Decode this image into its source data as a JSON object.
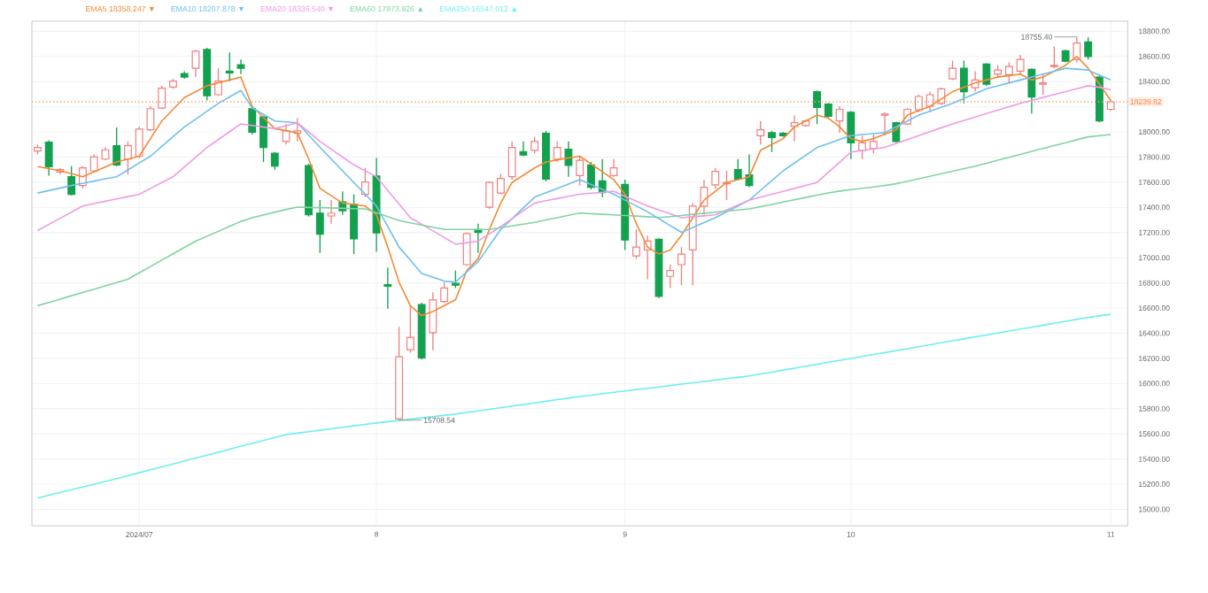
{
  "chart_data": {
    "type": "candlestick",
    "categories": [
      null,
      null,
      null,
      null,
      null,
      null,
      null,
      null,
      null,
      "2024/07",
      null,
      null,
      null,
      null,
      null,
      null,
      null,
      null,
      null,
      null,
      null,
      null,
      null,
      null,
      null,
      null,
      null,
      null,
      null,
      null,
      "8",
      null,
      null,
      null,
      null,
      null,
      null,
      null,
      null,
      null,
      null,
      null,
      null,
      null,
      null,
      null,
      null,
      null,
      null,
      null,
      null,
      null,
      "9",
      null,
      null,
      null,
      null,
      null,
      null,
      null,
      null,
      null,
      null,
      null,
      null,
      null,
      null,
      null,
      null,
      null,
      null,
      null,
      "10",
      null,
      null,
      null,
      null,
      null,
      null,
      null,
      null,
      null,
      null,
      null,
      null,
      null,
      null,
      null,
      null,
      null,
      null,
      null,
      null,
      null,
      null,
      "11"
    ],
    "ohlc": [
      [
        17849,
        17900,
        17821,
        17877
      ],
      [
        17919,
        17933,
        17653,
        17723
      ],
      [
        17681,
        17714,
        17663,
        17700
      ],
      [
        17644,
        17728,
        17495,
        17504
      ],
      [
        17574,
        17728,
        17551,
        17714
      ],
      [
        17691,
        17821,
        17681,
        17802
      ],
      [
        17784,
        17877,
        17775,
        17858
      ],
      [
        17891,
        18036,
        17728,
        17737
      ],
      [
        17784,
        17924,
        17663,
        17891
      ],
      [
        17807,
        18040,
        17793,
        18022
      ],
      [
        18017,
        18204,
        18008,
        18185
      ],
      [
        18189,
        18367,
        18180,
        18348
      ],
      [
        18357,
        18422,
        18343,
        18404
      ],
      [
        18464,
        18483,
        18422,
        18436
      ],
      [
        18506,
        18651,
        18436,
        18641
      ],
      [
        18655,
        18669,
        18250,
        18287
      ],
      [
        18296,
        18506,
        18287,
        18404
      ],
      [
        18483,
        18632,
        18404,
        18469
      ],
      [
        18534,
        18576,
        18460,
        18506
      ],
      [
        18185,
        18204,
        17980,
        17998
      ],
      [
        18119,
        18129,
        17761,
        17877
      ],
      [
        17830,
        17840,
        17700,
        17728
      ],
      [
        17924,
        18063,
        17900,
        18008
      ],
      [
        17989,
        18110,
        17924,
        18008
      ],
      [
        17733,
        17747,
        17327,
        17341
      ],
      [
        17355,
        17458,
        17038,
        17187
      ],
      [
        17332,
        17458,
        17271,
        17355
      ],
      [
        17444,
        17528,
        17341,
        17374
      ],
      [
        17425,
        17504,
        17029,
        17150
      ],
      [
        17504,
        17714,
        17481,
        17602
      ],
      [
        17649,
        17793,
        17048,
        17197
      ],
      [
        16787,
        16922,
        16596,
        16773
      ],
      [
        15720,
        16451,
        15708.54,
        16213
      ],
      [
        16269,
        16619,
        16246,
        16367
      ],
      [
        16628,
        16642,
        16190,
        16204
      ],
      [
        16404,
        16726,
        16265,
        16665
      ],
      [
        16652,
        16805,
        16642,
        16759
      ],
      [
        16796,
        16898,
        16759,
        16782
      ],
      [
        16945,
        17201,
        16936,
        17192
      ],
      [
        17225,
        17271,
        17038,
        17201
      ],
      [
        17402,
        17607,
        17388,
        17598
      ],
      [
        17514,
        17667,
        17504,
        17630
      ],
      [
        17644,
        17924,
        17621,
        17877
      ],
      [
        17844,
        17924,
        17807,
        17816
      ],
      [
        17854,
        17961,
        17830,
        17924
      ],
      [
        17989,
        18008,
        17607,
        17625
      ],
      [
        17784,
        17924,
        17761,
        17877
      ],
      [
        17863,
        17924,
        17644,
        17733
      ],
      [
        17653,
        17807,
        17574,
        17775
      ],
      [
        17737,
        17761,
        17542,
        17560
      ],
      [
        17611,
        17784,
        17481,
        17518
      ],
      [
        17653,
        17784,
        17644,
        17714
      ],
      [
        17583,
        17621,
        17062,
        17141
      ],
      [
        17015,
        17225,
        16992,
        17085
      ],
      [
        17062,
        17178,
        16829,
        17132
      ],
      [
        17146,
        17155,
        16679,
        16693
      ],
      [
        16852,
        16945,
        16759,
        16898
      ],
      [
        16945,
        17085,
        16782,
        17029
      ],
      [
        17062,
        17435,
        16782,
        17411
      ],
      [
        17411,
        17621,
        17341,
        17560
      ],
      [
        17579,
        17714,
        17551,
        17686
      ],
      [
        17588,
        17691,
        17458,
        17598
      ],
      [
        17700,
        17784,
        17616,
        17625
      ],
      [
        17658,
        17821,
        17560,
        17574
      ],
      [
        17970,
        18087,
        17900,
        18017
      ],
      [
        17994,
        18008,
        17840,
        17956
      ],
      [
        17989,
        17998,
        17961,
        17970
      ],
      [
        18045,
        18133,
        17924,
        18073
      ],
      [
        18050,
        18096,
        18040,
        18087
      ],
      [
        18320,
        18329,
        18063,
        18194
      ],
      [
        18222,
        18231,
        18110,
        18124
      ],
      [
        18087,
        18204,
        17994,
        18180
      ],
      [
        18157,
        18166,
        17784,
        17914
      ],
      [
        17854,
        17970,
        17784,
        17914
      ],
      [
        17868,
        17980,
        17830,
        17924
      ],
      [
        18133,
        18157,
        17970,
        18143
      ],
      [
        18073,
        18082,
        17914,
        17924
      ],
      [
        18063,
        18189,
        18054,
        18180
      ],
      [
        18175,
        18296,
        18157,
        18282
      ],
      [
        18204,
        18320,
        18157,
        18296
      ],
      [
        18227,
        18352,
        18213,
        18343
      ],
      [
        18422,
        18567,
        18413,
        18506
      ],
      [
        18506,
        18567,
        18227,
        18320
      ],
      [
        18352,
        18483,
        18320,
        18413
      ],
      [
        18539,
        18548,
        18366,
        18380
      ],
      [
        18460,
        18529,
        18436,
        18492
      ],
      [
        18455,
        18553,
        18390,
        18520
      ],
      [
        18483,
        18613,
        18460,
        18576
      ],
      [
        18497,
        18506,
        18147,
        18278
      ],
      [
        18380,
        18460,
        18296,
        18390
      ],
      [
        18520,
        18679,
        18506,
        18529
      ],
      [
        18646,
        18655,
        18553,
        18562
      ],
      [
        18576,
        18755.4,
        18553,
        18707
      ],
      [
        18716,
        18753,
        18576,
        18599
      ],
      [
        18436,
        18460,
        18077,
        18087
      ],
      [
        18180,
        18259,
        18166,
        18239.82
      ]
    ],
    "series": [
      {
        "name": "EMA5 18358.247 ▼",
        "type": "line",
        "color": "#f28a36",
        "values": [
          17724,
          17708,
          17691,
          17668,
          17644,
          17683,
          17722,
          17761,
          17784,
          17807,
          17947,
          18087,
          18180,
          18273,
          18320,
          18367,
          18390,
          18413,
          18436,
          18203,
          18115,
          18026,
          18010,
          17994,
          17784,
          17551,
          17493,
          17435,
          17423,
          17411,
          17342,
          17085,
          16806,
          16619,
          16540,
          16573,
          16620,
          16666,
          16899,
          16992,
          17225,
          17435,
          17598,
          17656,
          17714,
          17761,
          17778,
          17794,
          17807,
          17745,
          17683,
          17621,
          17505,
          17272,
          17085,
          17029,
          17062,
          17178,
          17318,
          17458,
          17528,
          17598,
          17621,
          17644,
          17854,
          17900,
          17947,
          18040,
          18087,
          18134,
          18110,
          18040,
          17947,
          17924,
          17947,
          17982,
          18017,
          18134,
          18169,
          18203,
          18262,
          18320,
          18355,
          18390,
          18413,
          18436,
          18448,
          18460,
          18413,
          18436,
          18483,
          18530,
          18600,
          18506,
          18380,
          18250
        ]
      },
      {
        "name": "EMA10 18207.878 ▼",
        "type": "line",
        "color": "#6fc0ee",
        "values": [
          17514,
          17534,
          17554,
          17574,
          17592,
          17609,
          17627,
          17644,
          17698,
          17753,
          17807,
          17885,
          17962,
          18040,
          18102,
          18165,
          18227,
          18278,
          18329,
          18190,
          18139,
          18087,
          18080,
          18073,
          17975,
          17877,
          17784,
          17691,
          17598,
          17505,
          17411,
          17248,
          17085,
          16980,
          16875,
          16845,
          16815,
          16806,
          16888,
          16969,
          17097,
          17225,
          17310,
          17396,
          17481,
          17516,
          17551,
          17586,
          17621,
          17582,
          17544,
          17505,
          17458,
          17412,
          17365,
          17311,
          17256,
          17202,
          17241,
          17279,
          17318,
          17365,
          17411,
          17458,
          17536,
          17613,
          17691,
          17753,
          17815,
          17877,
          17908,
          17940,
          17971,
          17979,
          17986,
          17994,
          18041,
          18087,
          18134,
          18165,
          18196,
          18227,
          18266,
          18304,
          18343,
          18366,
          18390,
          18413,
          18436,
          18460,
          18483,
          18506,
          18499,
          18492,
          18450,
          18413
        ]
      },
      {
        "name": "EMA20 18336.540 ▼",
        "type": "line",
        "color": "#ee9be6",
        "values": [
          17216,
          17265,
          17314,
          17362,
          17411,
          17430,
          17449,
          17467,
          17486,
          17505,
          17551,
          17598,
          17644,
          17722,
          17799,
          17877,
          17939,
          18002,
          18064,
          18052,
          18039,
          18026,
          18050,
          18073,
          17999,
          17924,
          17862,
          17800,
          17738,
          17691,
          17644,
          17535,
          17427,
          17318,
          17266,
          17213,
          17161,
          17108,
          17120,
          17132,
          17190,
          17248,
          17310,
          17373,
          17435,
          17453,
          17470,
          17488,
          17505,
          17513,
          17520,
          17528,
          17489,
          17450,
          17411,
          17380,
          17349,
          17318,
          17326,
          17333,
          17341,
          17380,
          17419,
          17458,
          17481,
          17505,
          17528,
          17551,
          17575,
          17598,
          17679,
          17759,
          17840,
          17852,
          17865,
          17877,
          17908,
          17939,
          17970,
          18002,
          18033,
          18064,
          18091,
          18118,
          18146,
          18173,
          18200,
          18227,
          18250,
          18274,
          18297,
          18320,
          18344,
          18367,
          18355,
          18337
        ]
      },
      {
        "name": "EMA60 17973.926 ▲",
        "type": "line",
        "color": "#7fd4a0",
        "values": [
          16619,
          16645,
          16671,
          16698,
          16724,
          16750,
          16777,
          16803,
          16829,
          16880,
          16930,
          16981,
          17031,
          17082,
          17132,
          17171,
          17210,
          17250,
          17289,
          17318,
          17340,
          17362,
          17384,
          17402,
          17400,
          17398,
          17396,
          17393,
          17390,
          17388,
          17357,
          17326,
          17295,
          17278,
          17260,
          17243,
          17225,
          17225,
          17225,
          17225,
          17225,
          17239,
          17253,
          17267,
          17281,
          17300,
          17318,
          17337,
          17355,
          17350,
          17345,
          17341,
          17336,
          17331,
          17326,
          17320,
          17327,
          17336,
          17345,
          17354,
          17362,
          17371,
          17380,
          17388,
          17406,
          17424,
          17443,
          17461,
          17479,
          17497,
          17515,
          17530,
          17541,
          17552,
          17563,
          17575,
          17588,
          17608,
          17628,
          17648,
          17668,
          17688,
          17708,
          17728,
          17751,
          17775,
          17798,
          17821,
          17845,
          17868,
          17891,
          17914,
          17938,
          17961,
          17970,
          17979
        ]
      },
      {
        "name": "EMA250 16547.012 ▲",
        "type": "line",
        "color": "#6eeeee",
        "values": [
          15090,
          15112,
          15134,
          15156,
          15178,
          15200,
          15222,
          15245,
          15268,
          15291,
          15315,
          15338,
          15361,
          15385,
          15408,
          15431,
          15454,
          15478,
          15501,
          15524,
          15547,
          15571,
          15594,
          15606,
          15617,
          15629,
          15640,
          15652,
          15664,
          15675,
          15687,
          15697,
          15707,
          15717,
          15727,
          15737,
          15747,
          15757,
          15770,
          15783,
          15795,
          15808,
          15821,
          15833,
          15846,
          15859,
          15872,
          15884,
          15897,
          15908,
          15919,
          15930,
          15941,
          15952,
          15962,
          15973,
          15984,
          15995,
          16006,
          16017,
          16028,
          16039,
          16049,
          16060,
          16076,
          16091,
          16107,
          16122,
          16138,
          16153,
          16169,
          16184,
          16200,
          16215,
          16231,
          16246,
          16262,
          16277,
          16293,
          16309,
          16324,
          16340,
          16355,
          16371,
          16386,
          16402,
          16417,
          16433,
          16448,
          16464,
          16479,
          16495,
          16510,
          16526,
          16538,
          16550
        ]
      }
    ],
    "ylim": [
      14870,
      18880
    ],
    "yticks": [
      {
        "value": 15000,
        "label": "15000.00"
      },
      {
        "value": 15200,
        "label": "15200.00"
      },
      {
        "value": 15400,
        "label": "15400.00"
      },
      {
        "value": 15600,
        "label": "15600.00"
      },
      {
        "value": 15800,
        "label": "15800.00"
      },
      {
        "value": 16000,
        "label": "16000.00"
      },
      {
        "value": 16200,
        "label": "16200.00"
      },
      {
        "value": 16400,
        "label": "16400.00"
      },
      {
        "value": 16600,
        "label": "16600.00"
      },
      {
        "value": 16800,
        "label": "16800.00"
      },
      {
        "value": 17000,
        "label": "17000.00"
      },
      {
        "value": 17200,
        "label": "17200.00"
      },
      {
        "value": 17400,
        "label": "17400.00"
      },
      {
        "value": 17600,
        "label": "17600.00"
      },
      {
        "value": 17800,
        "label": "17800.00"
      },
      {
        "value": 18000,
        "label": "18000.00"
      },
      {
        "value": 18200,
        "label": null
      },
      {
        "value": 18400,
        "label": "18400.00"
      },
      {
        "value": 18600,
        "label": "18600.00"
      },
      {
        "value": 18800,
        "label": "18800.00"
      }
    ],
    "ref_lines": [
      {
        "axis": "y",
        "value": 18239.82,
        "label": "18239.82",
        "color": "#f5a25d",
        "line_style": "dotted"
      }
    ],
    "annotations": [
      "18755.40",
      {
        "text": "15708.54",
        "y": 15708.54
      }
    ],
    "grid": true,
    "legend": "top left"
  }
}
